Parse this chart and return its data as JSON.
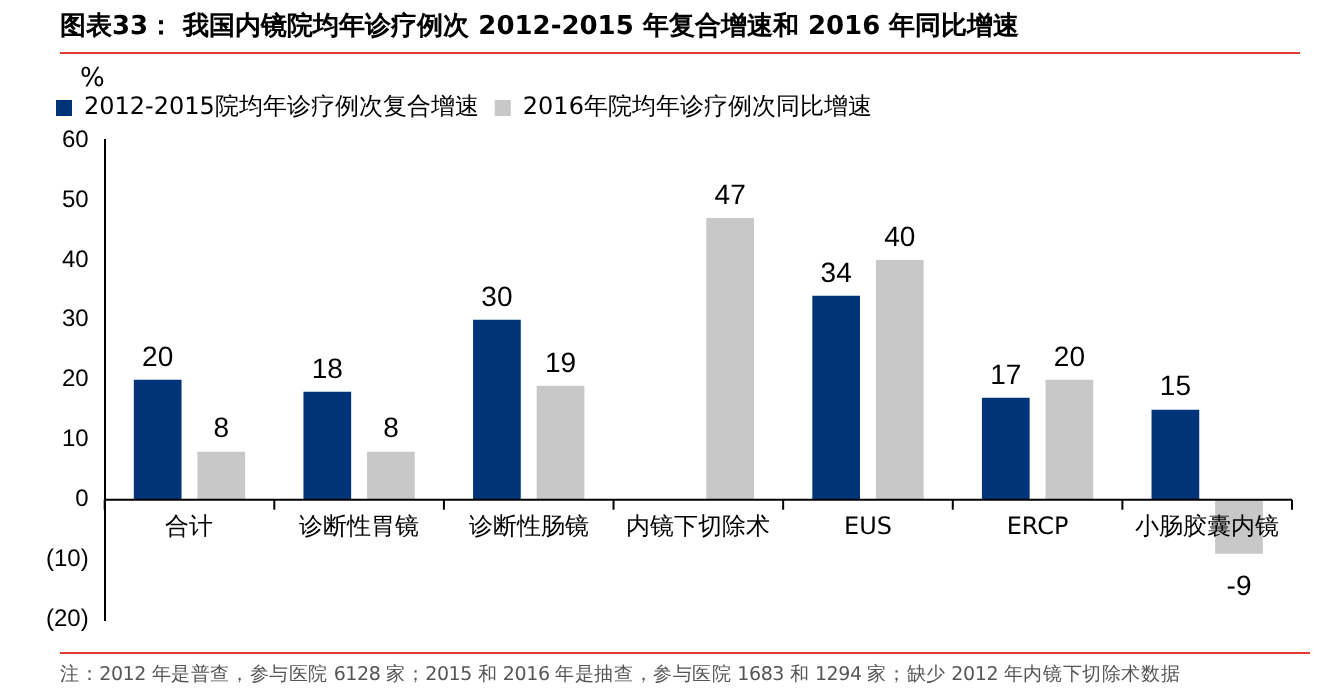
{
  "chart_data": {
    "type": "bar",
    "title": "图表33：   我国内镜院均年诊疗例次 2012-2015 年复合增速和 2016 年同比增速",
    "ylabel": "%",
    "categories": [
      "合计",
      "诊断性胃镜",
      "诊断性肠镜",
      "内镜下切除术",
      "EUS",
      "ERCP",
      "小肠胶囊内镜"
    ],
    "series": [
      {
        "name": "2012-2015院均年诊疗例次复合增速",
        "color": "#003478",
        "values": [
          20,
          18,
          30,
          null,
          34,
          17,
          15
        ]
      },
      {
        "name": "2016年院均年诊疗例次同比增速",
        "color": "#c8c8c8",
        "values": [
          8,
          8,
          19,
          47,
          40,
          20,
          -9
        ]
      }
    ],
    "ylim": [
      -20,
      60
    ],
    "yticks": [
      {
        "value": -20,
        "label": "(20)"
      },
      {
        "value": -10,
        "label": "(10)"
      },
      0,
      10,
      20,
      30,
      40,
      50,
      60
    ],
    "grid": false,
    "legend": "top",
    "data_labels": true,
    "annotations": [
      "注：2012 年是普查，参与医院 6128 家；2015 和 2016 年是抽查，参与医院 1683 和 1294 家；缺少 2012 年内镜下切除术数据"
    ]
  }
}
